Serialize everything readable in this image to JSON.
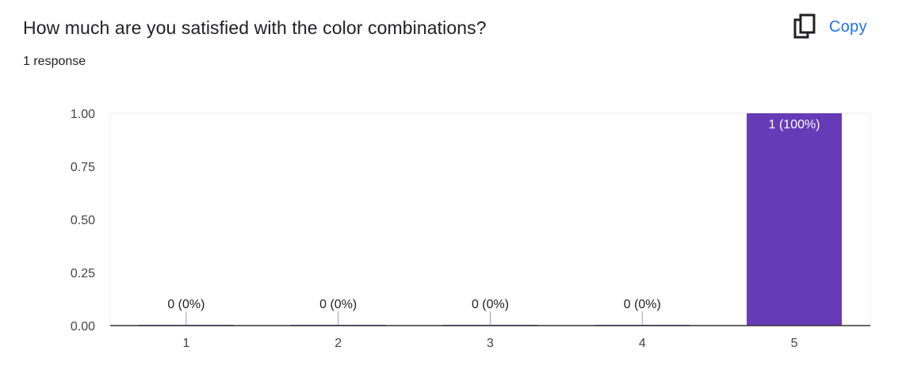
{
  "question": {
    "title": "How much are you satisfied with the color combinations?",
    "response_count": "1 response"
  },
  "toolbar": {
    "copy_label": "Copy",
    "copy_icon": "copy-icon"
  },
  "colors": {
    "bar": "#673ab7",
    "accent": "#1a73e8"
  },
  "chart_data": {
    "type": "bar",
    "categories": [
      "1",
      "2",
      "3",
      "4",
      "5"
    ],
    "values": [
      0,
      0,
      0,
      0,
      1
    ],
    "data_labels": [
      "0 (0%)",
      "0 (0%)",
      "0 (0%)",
      "0 (0%)",
      "1 (100%)"
    ],
    "y_ticks": [
      "0.00",
      "0.25",
      "0.50",
      "0.75",
      "1.00"
    ],
    "ylim": [
      0,
      1
    ],
    "title": "",
    "xlabel": "",
    "ylabel": "",
    "grid": false,
    "legend": "none"
  }
}
